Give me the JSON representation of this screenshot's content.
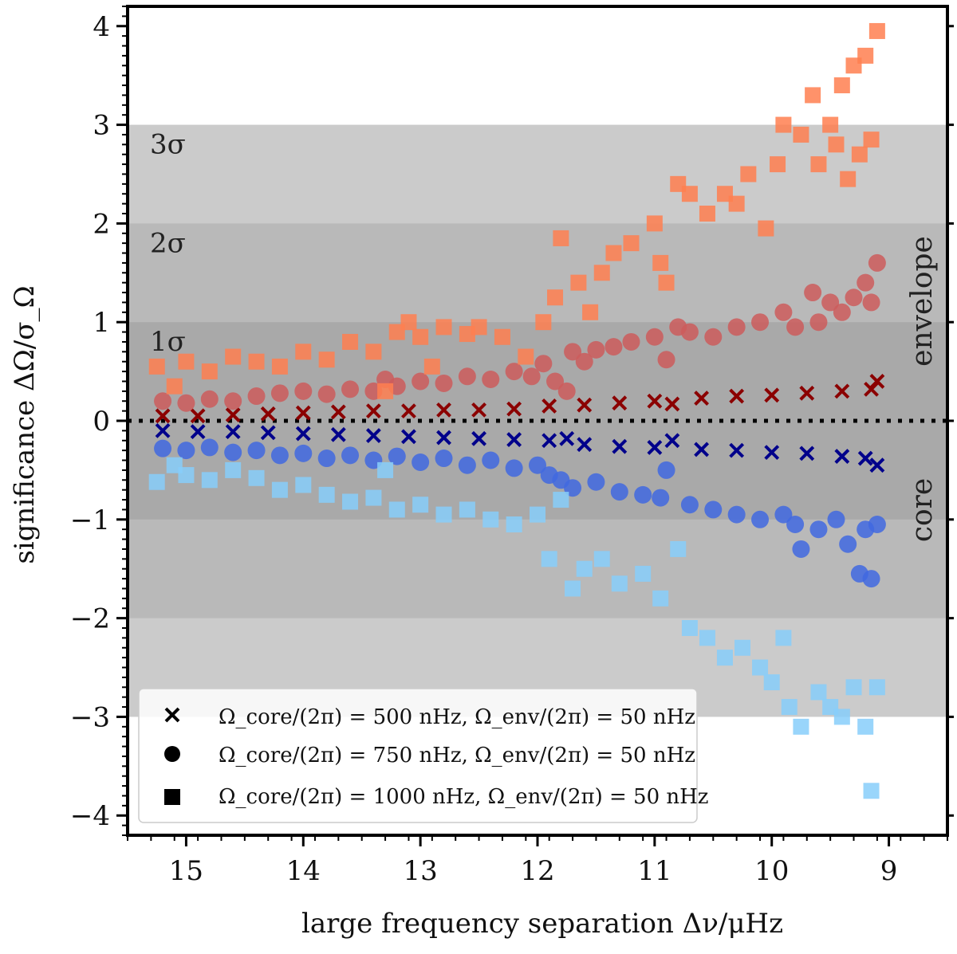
{
  "chart_data": {
    "type": "scatter",
    "title": "",
    "xlabel": "large frequency separation Δν/μHz",
    "ylabel": "significance ΔΩ/σ_Ω",
    "xlim": [
      15.5,
      8.5
    ],
    "ylim": [
      -4.2,
      4.2
    ],
    "x_reversed": true,
    "x_ticks": [
      15,
      14,
      13,
      12,
      11,
      10,
      9
    ],
    "y_ticks": [
      -4,
      -3,
      -2,
      -1,
      0,
      1,
      2,
      3,
      4
    ],
    "x_tick_labels": [
      "15",
      "14",
      "13",
      "12",
      "11",
      "10",
      "9"
    ],
    "y_tick_labels": [
      "−4",
      "−3",
      "−2",
      "−1",
      "0",
      "1",
      "2",
      "3",
      "4"
    ],
    "grid": false,
    "bands": [
      {
        "label": "1σ",
        "range": [
          -1,
          1
        ],
        "color": "#a9a9a9"
      },
      {
        "label": "2σ",
        "range": [
          -2,
          2
        ],
        "color": "#b9b9b9"
      },
      {
        "label": "3σ",
        "range": [
          -3,
          3
        ],
        "color": "#cbcbcb"
      }
    ],
    "band_labels": [
      "1σ",
      "2σ",
      "3σ"
    ],
    "side_labels": {
      "upper": "envelope",
      "lower": "core"
    },
    "zero_line": {
      "y": 0,
      "style": "dotted",
      "color": "#000000"
    },
    "legend": {
      "placement": "lower-left",
      "entries": [
        {
          "marker": "x",
          "label": "Ω_core/(2π) = 500 nHz, Ω_env/(2π) = 50 nHz"
        },
        {
          "marker": "circle",
          "label": "Ω_core/(2π) = 750 nHz, Ω_env/(2π) = 50 nHz"
        },
        {
          "marker": "square",
          "label": "Ω_core/(2π) = 1000 nHz, Ω_env/(2π) = 50 nHz"
        }
      ]
    },
    "series": [
      {
        "name": "500 nHz envelope",
        "marker": "x",
        "color": "#8b0000",
        "points": [
          [
            15.2,
            0.05
          ],
          [
            14.9,
            0.05
          ],
          [
            14.6,
            0.06
          ],
          [
            14.3,
            0.07
          ],
          [
            14.0,
            0.08
          ],
          [
            13.7,
            0.09
          ],
          [
            13.4,
            0.1
          ],
          [
            13.1,
            0.1
          ],
          [
            12.8,
            0.11
          ],
          [
            12.5,
            0.11
          ],
          [
            12.2,
            0.12
          ],
          [
            11.9,
            0.15
          ],
          [
            11.6,
            0.16
          ],
          [
            11.3,
            0.18
          ],
          [
            11.0,
            0.2
          ],
          [
            10.85,
            0.17
          ],
          [
            10.6,
            0.23
          ],
          [
            10.3,
            0.25
          ],
          [
            10.0,
            0.26
          ],
          [
            9.7,
            0.28
          ],
          [
            9.4,
            0.3
          ],
          [
            9.15,
            0.32
          ],
          [
            9.1,
            0.4
          ]
        ]
      },
      {
        "name": "500 nHz core",
        "marker": "x",
        "color": "#00008b",
        "points": [
          [
            15.2,
            -0.1
          ],
          [
            14.9,
            -0.11
          ],
          [
            14.6,
            -0.11
          ],
          [
            14.3,
            -0.12
          ],
          [
            14.0,
            -0.13
          ],
          [
            13.7,
            -0.14
          ],
          [
            13.4,
            -0.15
          ],
          [
            13.1,
            -0.16
          ],
          [
            12.8,
            -0.17
          ],
          [
            12.5,
            -0.18
          ],
          [
            12.2,
            -0.19
          ],
          [
            11.9,
            -0.2
          ],
          [
            11.75,
            -0.18
          ],
          [
            11.6,
            -0.24
          ],
          [
            11.3,
            -0.26
          ],
          [
            11.0,
            -0.27
          ],
          [
            10.85,
            -0.2
          ],
          [
            10.6,
            -0.29
          ],
          [
            10.3,
            -0.3
          ],
          [
            10.0,
            -0.32
          ],
          [
            9.7,
            -0.33
          ],
          [
            9.4,
            -0.36
          ],
          [
            9.2,
            -0.38
          ],
          [
            9.1,
            -0.45
          ]
        ]
      },
      {
        "name": "750 nHz envelope",
        "marker": "circle",
        "color": "#cd5c5c",
        "points": [
          [
            15.2,
            0.2
          ],
          [
            15.0,
            0.18
          ],
          [
            14.8,
            0.22
          ],
          [
            14.6,
            0.2
          ],
          [
            14.4,
            0.25
          ],
          [
            14.2,
            0.28
          ],
          [
            14.0,
            0.3
          ],
          [
            13.8,
            0.27
          ],
          [
            13.6,
            0.32
          ],
          [
            13.4,
            0.3
          ],
          [
            13.3,
            0.42
          ],
          [
            13.2,
            0.35
          ],
          [
            13.0,
            0.4
          ],
          [
            12.8,
            0.38
          ],
          [
            12.6,
            0.45
          ],
          [
            12.4,
            0.42
          ],
          [
            12.2,
            0.5
          ],
          [
            12.05,
            0.45
          ],
          [
            11.95,
            0.58
          ],
          [
            11.85,
            0.4
          ],
          [
            11.75,
            0.3
          ],
          [
            11.7,
            0.7
          ],
          [
            11.6,
            0.6
          ],
          [
            11.5,
            0.72
          ],
          [
            11.35,
            0.75
          ],
          [
            11.2,
            0.8
          ],
          [
            11.0,
            0.85
          ],
          [
            10.9,
            0.62
          ],
          [
            10.8,
            0.95
          ],
          [
            10.7,
            0.9
          ],
          [
            10.5,
            0.85
          ],
          [
            10.3,
            0.95
          ],
          [
            10.1,
            1.0
          ],
          [
            9.9,
            1.1
          ],
          [
            9.8,
            0.95
          ],
          [
            9.65,
            1.3
          ],
          [
            9.6,
            1.0
          ],
          [
            9.5,
            1.2
          ],
          [
            9.4,
            1.1
          ],
          [
            9.3,
            1.25
          ],
          [
            9.2,
            1.4
          ],
          [
            9.15,
            1.2
          ],
          [
            9.1,
            1.6
          ]
        ]
      },
      {
        "name": "750 nHz core",
        "marker": "circle",
        "color": "#4169e1",
        "points": [
          [
            15.2,
            -0.28
          ],
          [
            15.0,
            -0.3
          ],
          [
            14.8,
            -0.27
          ],
          [
            14.6,
            -0.32
          ],
          [
            14.4,
            -0.3
          ],
          [
            14.2,
            -0.35
          ],
          [
            14.0,
            -0.33
          ],
          [
            13.8,
            -0.38
          ],
          [
            13.6,
            -0.35
          ],
          [
            13.4,
            -0.4
          ],
          [
            13.2,
            -0.36
          ],
          [
            13.0,
            -0.42
          ],
          [
            12.8,
            -0.38
          ],
          [
            12.6,
            -0.45
          ],
          [
            12.4,
            -0.4
          ],
          [
            12.2,
            -0.48
          ],
          [
            12.0,
            -0.45
          ],
          [
            11.9,
            -0.55
          ],
          [
            11.8,
            -0.6
          ],
          [
            11.7,
            -0.68
          ],
          [
            11.5,
            -0.62
          ],
          [
            11.3,
            -0.72
          ],
          [
            11.1,
            -0.75
          ],
          [
            10.95,
            -0.78
          ],
          [
            10.9,
            -0.5
          ],
          [
            10.7,
            -0.85
          ],
          [
            10.5,
            -0.9
          ],
          [
            10.3,
            -0.95
          ],
          [
            10.1,
            -1.0
          ],
          [
            9.9,
            -0.95
          ],
          [
            9.8,
            -1.05
          ],
          [
            9.75,
            -1.3
          ],
          [
            9.6,
            -1.1
          ],
          [
            9.45,
            -1.0
          ],
          [
            9.35,
            -1.25
          ],
          [
            9.25,
            -1.55
          ],
          [
            9.2,
            -1.1
          ],
          [
            9.15,
            -1.6
          ],
          [
            9.1,
            -1.05
          ]
        ]
      },
      {
        "name": "1000 nHz envelope",
        "marker": "square",
        "color": "#ff7f50",
        "points": [
          [
            15.25,
            0.55
          ],
          [
            15.1,
            0.35
          ],
          [
            15.0,
            0.6
          ],
          [
            14.8,
            0.5
          ],
          [
            14.6,
            0.65
          ],
          [
            14.4,
            0.6
          ],
          [
            14.2,
            0.55
          ],
          [
            14.0,
            0.7
          ],
          [
            13.8,
            0.62
          ],
          [
            13.6,
            0.8
          ],
          [
            13.4,
            0.7
          ],
          [
            13.3,
            0.3
          ],
          [
            13.2,
            0.9
          ],
          [
            13.1,
            1.0
          ],
          [
            13.0,
            0.85
          ],
          [
            12.9,
            0.55
          ],
          [
            12.8,
            0.95
          ],
          [
            12.6,
            0.88
          ],
          [
            12.5,
            0.95
          ],
          [
            12.3,
            0.85
          ],
          [
            12.1,
            0.65
          ],
          [
            11.95,
            1.0
          ],
          [
            11.85,
            1.25
          ],
          [
            11.8,
            1.85
          ],
          [
            11.65,
            1.4
          ],
          [
            11.55,
            1.1
          ],
          [
            11.45,
            1.5
          ],
          [
            11.35,
            1.7
          ],
          [
            11.2,
            1.8
          ],
          [
            11.0,
            2.0
          ],
          [
            10.95,
            1.6
          ],
          [
            10.9,
            1.4
          ],
          [
            10.8,
            2.4
          ],
          [
            10.7,
            2.3
          ],
          [
            10.55,
            2.1
          ],
          [
            10.4,
            2.3
          ],
          [
            10.3,
            2.2
          ],
          [
            10.2,
            2.5
          ],
          [
            10.05,
            1.95
          ],
          [
            9.95,
            2.6
          ],
          [
            9.9,
            3.0
          ],
          [
            9.75,
            2.9
          ],
          [
            9.65,
            3.3
          ],
          [
            9.6,
            2.6
          ],
          [
            9.5,
            3.0
          ],
          [
            9.45,
            2.8
          ],
          [
            9.4,
            3.4
          ],
          [
            9.35,
            2.45
          ],
          [
            9.3,
            3.6
          ],
          [
            9.25,
            2.7
          ],
          [
            9.2,
            3.7
          ],
          [
            9.15,
            2.85
          ],
          [
            9.1,
            3.95
          ]
        ]
      },
      {
        "name": "1000 nHz core",
        "marker": "square",
        "color": "#87cefa",
        "points": [
          [
            15.25,
            -0.62
          ],
          [
            15.1,
            -0.45
          ],
          [
            15.0,
            -0.55
          ],
          [
            14.8,
            -0.6
          ],
          [
            14.6,
            -0.5
          ],
          [
            14.4,
            -0.58
          ],
          [
            14.2,
            -0.7
          ],
          [
            14.0,
            -0.65
          ],
          [
            13.8,
            -0.75
          ],
          [
            13.6,
            -0.82
          ],
          [
            13.4,
            -0.78
          ],
          [
            13.3,
            -0.5
          ],
          [
            13.2,
            -0.9
          ],
          [
            13.0,
            -0.85
          ],
          [
            12.8,
            -0.95
          ],
          [
            12.6,
            -0.9
          ],
          [
            12.4,
            -1.0
          ],
          [
            12.2,
            -1.05
          ],
          [
            12.0,
            -0.95
          ],
          [
            11.9,
            -1.4
          ],
          [
            11.8,
            -0.8
          ],
          [
            11.7,
            -1.7
          ],
          [
            11.6,
            -1.5
          ],
          [
            11.45,
            -1.4
          ],
          [
            11.3,
            -1.65
          ],
          [
            11.1,
            -1.55
          ],
          [
            10.95,
            -1.8
          ],
          [
            10.8,
            -1.3
          ],
          [
            10.7,
            -2.1
          ],
          [
            10.55,
            -2.2
          ],
          [
            10.4,
            -2.4
          ],
          [
            10.25,
            -2.3
          ],
          [
            10.1,
            -2.5
          ],
          [
            10.0,
            -2.65
          ],
          [
            9.9,
            -2.2
          ],
          [
            9.85,
            -2.9
          ],
          [
            9.75,
            -3.1
          ],
          [
            9.6,
            -2.75
          ],
          [
            9.5,
            -2.9
          ],
          [
            9.4,
            -3.0
          ],
          [
            9.3,
            -2.7
          ],
          [
            9.2,
            -3.1
          ],
          [
            9.15,
            -3.75
          ],
          [
            9.1,
            -2.7
          ]
        ]
      }
    ]
  }
}
